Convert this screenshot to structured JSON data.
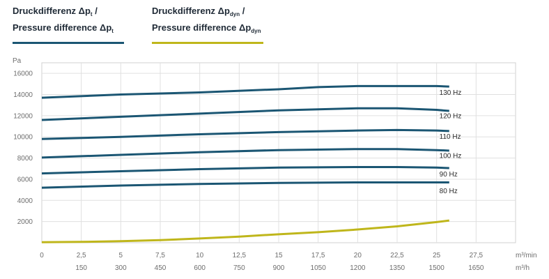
{
  "legend": {
    "item1": {
      "line1_pre": "Druckdifferenz Δp",
      "line1_sub": "t",
      "line1_post": " /",
      "line2_pre": "Pressure difference Δp",
      "line2_sub": "t",
      "color": "#1b5673"
    },
    "item2": {
      "line1_pre": "Druckdifferenz Δp",
      "line1_sub": "dyn",
      "line1_post": " /",
      "line2_pre": "Pressure difference Δp",
      "line2_sub": "dyn",
      "color": "#bfb61b"
    }
  },
  "chart_data": {
    "type": "line",
    "ylabel": "Pa",
    "ylim": [
      0,
      17000
    ],
    "yticks": [
      2000,
      4000,
      6000,
      8000,
      10000,
      12000,
      14000,
      16000
    ],
    "xlim": [
      0,
      30
    ],
    "xticks": [
      0,
      2.5,
      5,
      7.5,
      10,
      12.5,
      15,
      17.5,
      20,
      22.5,
      25,
      27.5
    ],
    "xtick_labels": [
      "0",
      "2,5",
      "5",
      "7,5",
      "10",
      "12,5",
      "15",
      "17,5",
      "20",
      "22,5",
      "25",
      "27,5"
    ],
    "xunit": "m³/min",
    "x2_ticks": [
      2.5,
      5,
      7.5,
      10,
      12.5,
      15,
      17.5,
      20,
      22.5,
      25,
      27.5
    ],
    "x2_labels": [
      "150",
      "300",
      "450",
      "600",
      "750",
      "900",
      "1050",
      "1200",
      "1350",
      "1500",
      "1650"
    ],
    "x2unit": "m³/h",
    "grid": true,
    "series": [
      {
        "name": "130 Hz",
        "kind": "pt",
        "color": "#1b5673",
        "x": [
          0,
          5,
          10,
          15,
          17.5,
          20,
          22.5,
          25,
          25.8
        ],
        "y": [
          13700,
          14000,
          14200,
          14500,
          14700,
          14800,
          14800,
          14800,
          14750
        ]
      },
      {
        "name": "120 Hz",
        "kind": "pt",
        "color": "#1b5673",
        "x": [
          0,
          5,
          10,
          15,
          20,
          22.5,
          25,
          25.8
        ],
        "y": [
          11600,
          11900,
          12200,
          12500,
          12700,
          12700,
          12550,
          12450
        ]
      },
      {
        "name": "110 Hz",
        "kind": "pt",
        "color": "#1b5673",
        "x": [
          0,
          5,
          10,
          15,
          20,
          22.5,
          25,
          25.8
        ],
        "y": [
          9800,
          10000,
          10250,
          10450,
          10600,
          10650,
          10600,
          10550
        ]
      },
      {
        "name": "100 Hz",
        "kind": "pt",
        "color": "#1b5673",
        "x": [
          0,
          5,
          10,
          15,
          20,
          22.5,
          25,
          25.8
        ],
        "y": [
          8050,
          8300,
          8550,
          8750,
          8850,
          8850,
          8750,
          8700
        ]
      },
      {
        "name": "90 Hz",
        "kind": "pt",
        "color": "#1b5673",
        "x": [
          0,
          5,
          10,
          15,
          20,
          22.5,
          25,
          25.8
        ],
        "y": [
          6550,
          6750,
          6950,
          7100,
          7150,
          7150,
          7100,
          7050
        ]
      },
      {
        "name": "80 Hz",
        "kind": "pt",
        "color": "#1b5673",
        "x": [
          0,
          5,
          10,
          15,
          20,
          25,
          25.8
        ],
        "y": [
          5200,
          5400,
          5550,
          5650,
          5700,
          5700,
          5700
        ]
      },
      {
        "name": "",
        "kind": "pdyn",
        "color": "#bfb61b",
        "x": [
          0,
          2.5,
          5,
          7.5,
          10,
          12.5,
          15,
          17.5,
          20,
          22.5,
          25,
          25.8
        ],
        "y": [
          50,
          80,
          150,
          250,
          400,
          580,
          800,
          1000,
          1250,
          1550,
          1950,
          2100
        ]
      }
    ],
    "label_positions": {
      "130 Hz": 14200,
      "120 Hz": 12000,
      "110 Hz": 10050,
      "100 Hz": 8250,
      "90 Hz": 6500,
      "80 Hz": 4900
    }
  }
}
